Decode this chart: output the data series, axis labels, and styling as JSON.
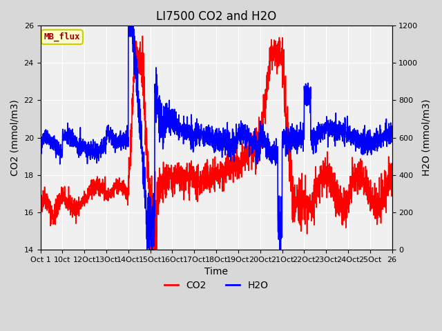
{
  "title": "LI7500 CO2 and H2O",
  "xlabel": "Time",
  "ylabel_left": "CO2 (mmol/m3)",
  "ylabel_right": "H2O (mmol/m3)",
  "annotation": "MB_flux",
  "x_tick_positions": [
    0,
    1,
    2,
    3,
    4,
    5,
    6,
    7,
    8,
    9,
    10,
    11,
    12,
    13,
    14,
    15,
    16
  ],
  "x_tick_labels": [
    "Oct 1",
    "10ct",
    "12Oct",
    "13Oct",
    "14Oct",
    "15Oct",
    "16Oct",
    "17Oct",
    "18Oct",
    "19Oct",
    "20Oct",
    "21Oct",
    "22Oct",
    "23Oct",
    "24Oct",
    "25Oct",
    "26"
  ],
  "ylim_left": [
    14,
    26
  ],
  "ylim_right": [
    0,
    1200
  ],
  "yticks_left": [
    14,
    16,
    18,
    20,
    22,
    24,
    26
  ],
  "yticks_right": [
    0,
    200,
    400,
    600,
    800,
    1000,
    1200
  ],
  "co2_color": "#ff0000",
  "h2o_color": "#0000ff",
  "plot_bg_color": "#d8d8d8",
  "inner_bg_color": "#f0f0f0",
  "annotation_bg": "#ffffcc",
  "annotation_border": "#cccc00",
  "annotation_text_color": "#990000",
  "title_fontsize": 12,
  "axis_fontsize": 10,
  "tick_fontsize": 8,
  "legend_fontsize": 10,
  "line_width": 1.2,
  "n_points": 2600
}
